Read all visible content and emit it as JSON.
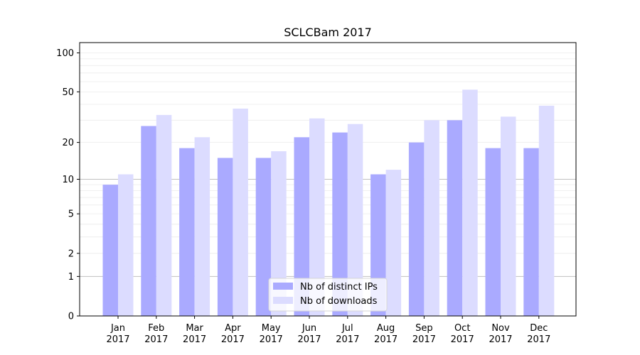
{
  "chart_data": {
    "type": "bar",
    "title": "SCLCBam 2017",
    "xlabel": "",
    "ylabel": "",
    "categories": [
      [
        "Jan",
        "2017"
      ],
      [
        "Feb",
        "2017"
      ],
      [
        "Mar",
        "2017"
      ],
      [
        "Apr",
        "2017"
      ],
      [
        "May",
        "2017"
      ],
      [
        "Jun",
        "2017"
      ],
      [
        "Jul",
        "2017"
      ],
      [
        "Aug",
        "2017"
      ],
      [
        "Sep",
        "2017"
      ],
      [
        "Oct",
        "2017"
      ],
      [
        "Nov",
        "2017"
      ],
      [
        "Dec",
        "2017"
      ]
    ],
    "series": [
      {
        "name": "Nb of distinct IPs",
        "values": [
          9,
          27,
          18,
          15,
          15,
          22,
          24,
          11,
          20,
          30,
          18,
          18
        ],
        "color": "#aaaaff"
      },
      {
        "name": "Nb of downloads",
        "values": [
          11,
          33,
          22,
          37,
          17,
          31,
          28,
          12,
          30,
          52,
          32,
          39
        ],
        "color": "#dcdcff"
      }
    ],
    "y_scale": "log(1+y)",
    "ylim": [
      0,
      120
    ],
    "yticks": [
      0,
      1,
      2,
      5,
      10,
      20,
      50,
      100
    ],
    "major_gridlines": [
      1,
      10
    ],
    "grid": true,
    "legend_position": "bottom-center"
  }
}
